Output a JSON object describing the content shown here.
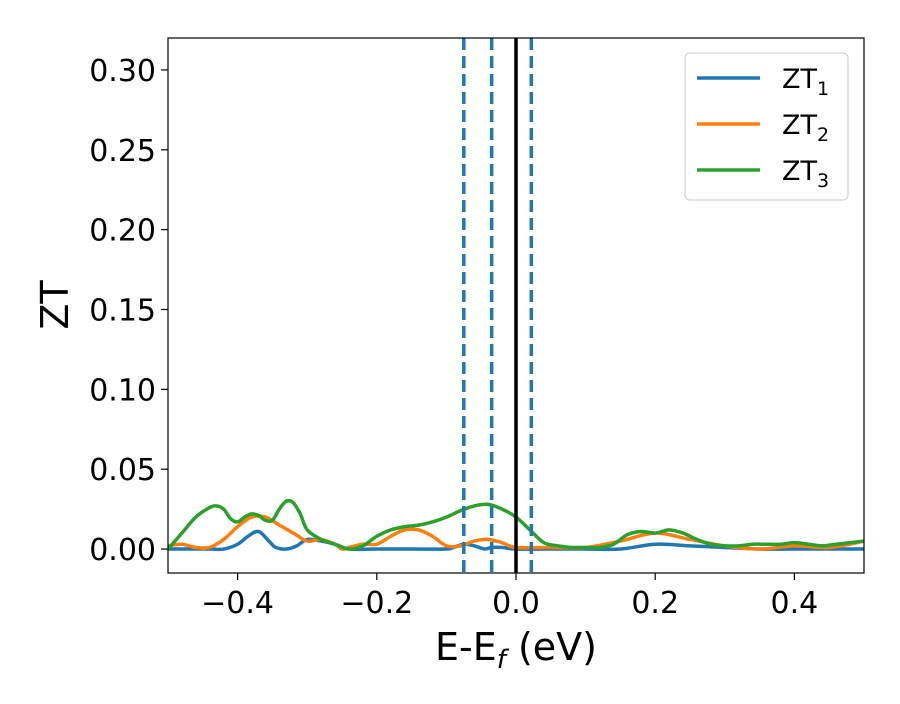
{
  "chart_data": {
    "type": "line",
    "title": "",
    "xlabel": {
      "main": "E-E",
      "sub": "f",
      "unit": " (eV)"
    },
    "ylabel": "ZT",
    "xlim": [
      -0.5,
      0.5
    ],
    "ylim": [
      -0.015,
      0.32
    ],
    "x_ticks": [
      -0.4,
      -0.2,
      0.0,
      0.2,
      0.4
    ],
    "x_tick_labels": [
      "−0.4",
      "−0.2",
      "0.0",
      "0.2",
      "0.4"
    ],
    "y_ticks": [
      0.0,
      0.05,
      0.1,
      0.15,
      0.2,
      0.25,
      0.3
    ],
    "y_tick_labels": [
      "0.00",
      "0.05",
      "0.10",
      "0.15",
      "0.20",
      "0.25",
      "0.30"
    ],
    "grid": false,
    "legend_position": "top-right",
    "fermi_line": {
      "x": 0.0,
      "color": "#000000"
    },
    "dashed_lines": {
      "x": [
        -0.075,
        -0.035,
        0.022
      ],
      "color": "#1f77b4"
    },
    "series": [
      {
        "name": "ZT",
        "sub": "1",
        "color": "#1f77b4",
        "x": [
          -0.5,
          -0.47,
          -0.44,
          -0.42,
          -0.4,
          -0.385,
          -0.37,
          -0.355,
          -0.345,
          -0.33,
          -0.315,
          -0.3,
          -0.28,
          -0.26,
          -0.24,
          -0.2,
          -0.15,
          -0.1,
          -0.09,
          -0.075,
          -0.06,
          -0.045,
          -0.035,
          -0.02,
          0.0,
          0.05,
          0.1,
          0.15,
          0.2,
          0.25,
          0.3,
          0.35,
          0.4,
          0.45,
          0.5
        ],
        "y": [
          0.0,
          0.0,
          0.0,
          0.0,
          0.003,
          0.008,
          0.011,
          0.005,
          0.001,
          0.0,
          0.002,
          0.006,
          0.005,
          0.003,
          0.0,
          0.0,
          0.0,
          0.0,
          0.001,
          0.003,
          0.002,
          0.0,
          0.001,
          0.001,
          0.0,
          0.0,
          0.0,
          0.0,
          0.003,
          0.002,
          0.001,
          0.0,
          0.0,
          0.0,
          0.0
        ]
      },
      {
        "name": "ZT",
        "sub": "2",
        "color": "#ff7f0e",
        "x": [
          -0.5,
          -0.48,
          -0.46,
          -0.44,
          -0.42,
          -0.4,
          -0.38,
          -0.36,
          -0.34,
          -0.32,
          -0.3,
          -0.28,
          -0.26,
          -0.25,
          -0.24,
          -0.22,
          -0.2,
          -0.18,
          -0.16,
          -0.14,
          -0.12,
          -0.1,
          -0.08,
          -0.06,
          -0.04,
          -0.02,
          0.0,
          0.05,
          0.1,
          0.15,
          0.2,
          0.25,
          0.3,
          0.35,
          0.4,
          0.45,
          0.5
        ],
        "y": [
          0.002,
          0.003,
          0.001,
          0.001,
          0.006,
          0.014,
          0.02,
          0.02,
          0.015,
          0.01,
          0.005,
          0.006,
          0.003,
          0.0,
          0.001,
          0.003,
          0.003,
          0.008,
          0.012,
          0.012,
          0.008,
          0.002,
          0.002,
          0.005,
          0.006,
          0.004,
          0.001,
          0.001,
          0.001,
          0.005,
          0.01,
          0.006,
          0.002,
          0.0,
          0.002,
          0.001,
          0.005
        ]
      },
      {
        "name": "ZT",
        "sub": "3",
        "color": "#2ca02c",
        "x": [
          -0.5,
          -0.48,
          -0.46,
          -0.44,
          -0.43,
          -0.42,
          -0.41,
          -0.4,
          -0.39,
          -0.38,
          -0.37,
          -0.36,
          -0.35,
          -0.34,
          -0.33,
          -0.32,
          -0.31,
          -0.3,
          -0.28,
          -0.26,
          -0.24,
          -0.22,
          -0.2,
          -0.18,
          -0.16,
          -0.14,
          -0.12,
          -0.1,
          -0.08,
          -0.06,
          -0.04,
          -0.02,
          0.0,
          0.02,
          0.04,
          0.06,
          0.08,
          0.1,
          0.12,
          0.14,
          0.16,
          0.18,
          0.2,
          0.22,
          0.24,
          0.26,
          0.28,
          0.3,
          0.32,
          0.34,
          0.36,
          0.38,
          0.4,
          0.42,
          0.44,
          0.46,
          0.48,
          0.5
        ],
        "y": [
          0.0,
          0.01,
          0.02,
          0.026,
          0.027,
          0.025,
          0.019,
          0.017,
          0.02,
          0.022,
          0.021,
          0.018,
          0.018,
          0.025,
          0.03,
          0.029,
          0.022,
          0.012,
          0.006,
          0.003,
          0.0,
          0.002,
          0.008,
          0.012,
          0.014,
          0.015,
          0.017,
          0.02,
          0.024,
          0.027,
          0.028,
          0.025,
          0.02,
          0.012,
          0.004,
          0.002,
          0.001,
          0.001,
          0.001,
          0.003,
          0.009,
          0.011,
          0.01,
          0.012,
          0.01,
          0.006,
          0.003,
          0.002,
          0.002,
          0.003,
          0.003,
          0.003,
          0.004,
          0.003,
          0.002,
          0.003,
          0.004,
          0.005
        ]
      }
    ]
  }
}
